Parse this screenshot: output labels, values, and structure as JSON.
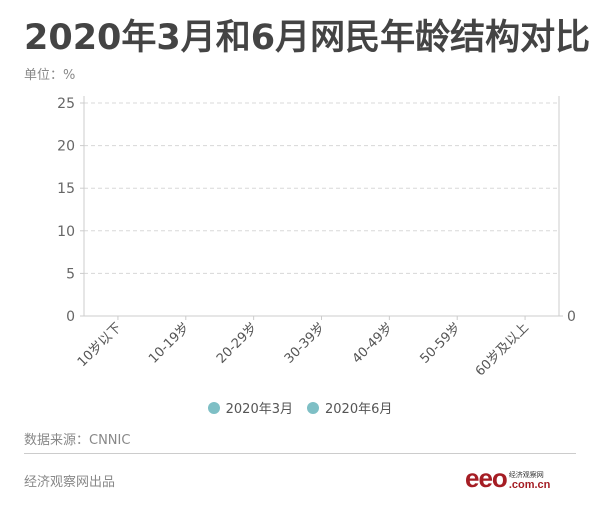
{
  "title": "2020年3月和6月网民年龄结构对比",
  "unit_label": "单位：%",
  "chart_data": {
    "type": "bar",
    "title": "2020年3月和6月网民年龄结构对比",
    "xlabel": "",
    "ylabel": "单位：%",
    "ylim": [
      0,
      25
    ],
    "yticks": [
      "0",
      "5",
      "10",
      "15",
      "20",
      "25"
    ],
    "right_axis_ticks": [
      "0"
    ],
    "grid": true,
    "legend_position": "bottom",
    "categories": [
      "10岁以下",
      "10-19岁",
      "20-29岁",
      "30-39岁",
      "40-49岁",
      "50-59岁",
      "60岁及以上"
    ],
    "series": [
      {
        "name": "2020年3月",
        "color": "#7ebfc5",
        "values": []
      },
      {
        "name": "2020年6月",
        "color": "#7ebfc5",
        "values": []
      }
    ]
  },
  "legend": [
    {
      "label": "2020年3月",
      "color": "#7ebfc5"
    },
    {
      "label": "2020年6月",
      "color": "#7ebfc5"
    }
  ],
  "footer": {
    "source": "数据来源：CNNIC",
    "producer": "经济观察网出品",
    "logo_text": "eeo",
    "logo_cn": "经济观察网",
    "logo_domain": ".com.cn"
  }
}
